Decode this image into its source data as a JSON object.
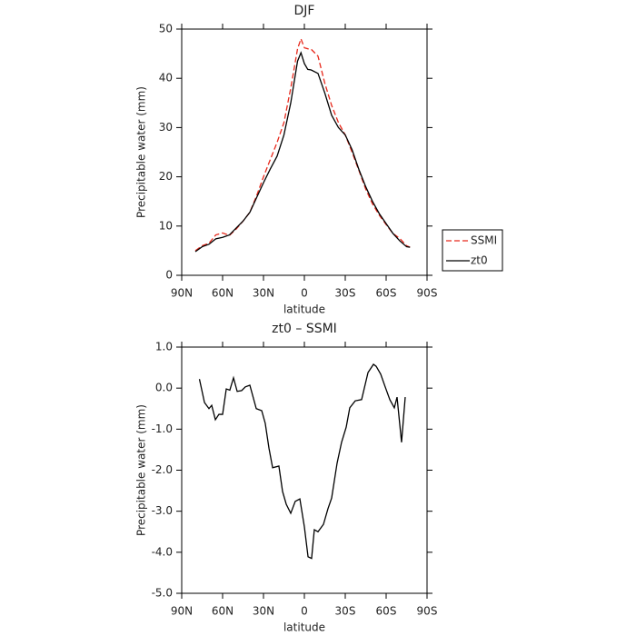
{
  "chart_data": [
    {
      "type": "line",
      "title": "DJF",
      "x_label": "latitude",
      "y_label": "Precipitable water (mm)",
      "x": [
        80,
        75,
        70,
        65,
        60,
        55,
        50,
        45,
        40,
        35,
        30,
        25,
        20,
        15,
        10,
        5,
        2.5,
        0,
        -2.5,
        -5,
        -10,
        -15,
        -20,
        -25,
        -30,
        -35,
        -40,
        -45,
        -50,
        -55,
        -60,
        -65,
        -70,
        -75,
        -77.5
      ],
      "series": [
        {
          "name": "SSMI",
          "color": "#e8291c",
          "style": "dashed",
          "values": [
            5,
            6,
            6.5,
            8.2,
            8.6,
            8.1,
            9.4,
            11,
            12.8,
            16.2,
            20,
            23.5,
            27,
            31,
            38,
            46,
            48,
            46.2,
            46,
            45.9,
            44.5,
            39,
            34.5,
            31,
            28.5,
            25,
            21.3,
            17.5,
            14.5,
            12.2,
            10.3,
            8.5,
            7.5,
            6,
            5.7
          ]
        },
        {
          "name": "zt0",
          "color": "#000000",
          "style": "solid",
          "values": [
            4.8,
            5.8,
            6.3,
            7.4,
            7.7,
            8.2,
            9.6,
            11,
            12.8,
            15.8,
            18.8,
            21.6,
            24.2,
            28.5,
            35,
            43.5,
            45.2,
            43,
            41.8,
            41.7,
            41,
            37,
            32.5,
            30,
            28.5,
            25.5,
            21.5,
            18,
            15,
            12.5,
            10.5,
            8.5,
            7,
            5.8,
            5.7
          ]
        }
      ],
      "xlim": [
        90,
        -90
      ],
      "xticks": [
        {
          "value": 90,
          "label": "90N"
        },
        {
          "value": 60,
          "label": "60N"
        },
        {
          "value": 30,
          "label": "30N"
        },
        0,
        {
          "value": -30,
          "label": "30S"
        },
        {
          "value": -60,
          "label": "60S"
        },
        {
          "value": -90,
          "label": "90S"
        }
      ],
      "ylim": [
        0,
        50
      ],
      "yticks": [
        0,
        10,
        20,
        30,
        40,
        50
      ],
      "legend": "right"
    },
    {
      "type": "line",
      "title": "zt0 – SSMI",
      "x_label": "latitude",
      "y_label": "Precipitable water (mm)",
      "x": [
        77,
        73.3,
        70,
        68,
        65.3,
        62.7,
        60,
        57.3,
        54.7,
        52,
        49.3,
        46,
        43.3,
        40,
        35.3,
        31.3,
        28.7,
        26,
        23.3,
        18.7,
        16,
        13.3,
        10,
        6.7,
        3.3,
        0,
        -2.7,
        -5.3,
        -7.3,
        -10,
        -14,
        -17.3,
        -20,
        -24,
        -27.3,
        -30.7,
        -33.3,
        -37.3,
        -42,
        -46.7,
        -50.7,
        -52.7,
        -56,
        -59.3,
        -62.7,
        -66,
        -68,
        -71.3,
        -74
      ],
      "series": [
        {
          "name": "zt0 – SSMI",
          "color": "#000000",
          "style": "solid",
          "values": [
            0.22,
            -0.35,
            -0.5,
            -0.42,
            -0.77,
            -0.64,
            -0.64,
            -0.02,
            -0.05,
            0.25,
            -0.08,
            -0.06,
            0.03,
            0.07,
            -0.5,
            -0.55,
            -0.86,
            -1.46,
            -1.94,
            -1.9,
            -2.52,
            -2.83,
            -3.05,
            -2.76,
            -2.7,
            -3.38,
            -4.11,
            -4.15,
            -3.45,
            -3.5,
            -3.32,
            -2.94,
            -2.68,
            -1.83,
            -1.32,
            -0.95,
            -0.48,
            -0.31,
            -0.28,
            0.38,
            0.58,
            0.53,
            0.34,
            0.03,
            -0.28,
            -0.48,
            -0.22,
            -1.32,
            -0.22
          ]
        }
      ],
      "xlim": [
        90,
        -90
      ],
      "xticks": [
        {
          "value": 90,
          "label": "90N"
        },
        {
          "value": 60,
          "label": "60N"
        },
        {
          "value": 30,
          "label": "30N"
        },
        0,
        {
          "value": -30,
          "label": "30S"
        },
        {
          "value": -60,
          "label": "60S"
        },
        {
          "value": -90,
          "label": "90S"
        }
      ],
      "ylim": [
        -5,
        1
      ],
      "yticks": [
        {
          "value": 1,
          "label": "1.0"
        },
        {
          "value": 0,
          "label": "0.0"
        },
        {
          "value": -1,
          "label": "-1.0"
        },
        {
          "value": -2,
          "label": "-2.0"
        },
        {
          "value": -3,
          "label": "-3.0"
        },
        {
          "value": -4,
          "label": "-4.0"
        },
        {
          "value": -5,
          "label": "-5.0"
        }
      ]
    }
  ]
}
